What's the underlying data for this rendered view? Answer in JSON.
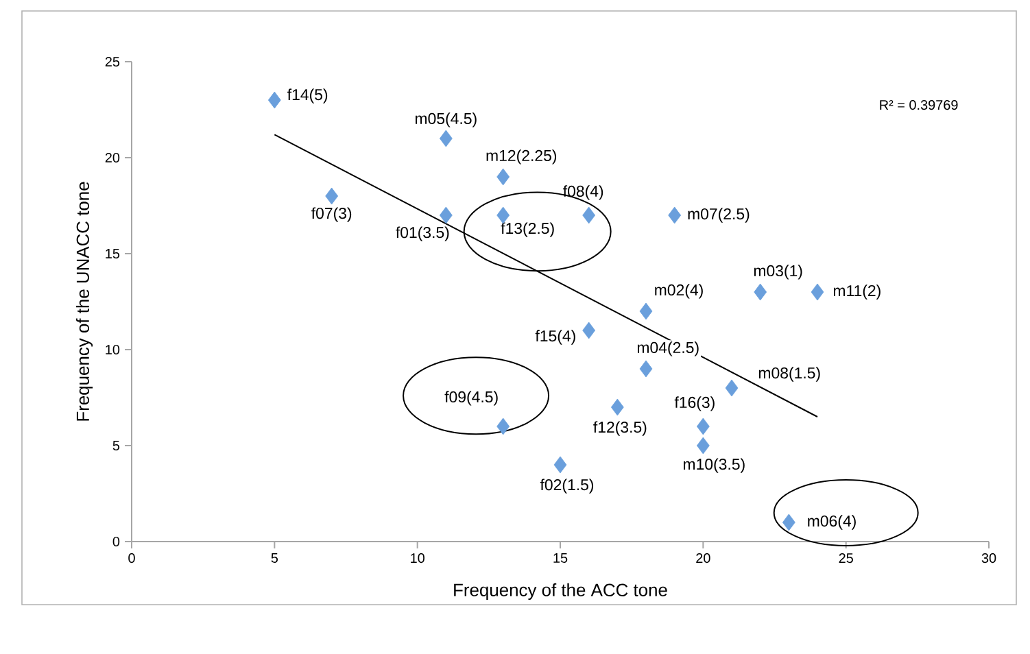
{
  "chart_data": {
    "type": "scatter",
    "xlabel": "Frequency of the ACC tone",
    "ylabel": "Frequency of the UNACC tone",
    "xlim": [
      0,
      30
    ],
    "xticks": [
      0,
      5,
      10,
      15,
      20,
      25,
      30
    ],
    "ylim": [
      0,
      25
    ],
    "yticks": [
      0,
      5,
      10,
      15,
      20,
      25
    ],
    "grid": false,
    "series": [
      {
        "marker": "diamond",
        "color": "#6a9fdc",
        "x": [
          5,
          11,
          7,
          11,
          13,
          13,
          16,
          19,
          18,
          22,
          24,
          16,
          18,
          21,
          20,
          20,
          17,
          13,
          15,
          23
        ],
        "values": [
          23,
          21,
          18,
          17,
          19,
          17,
          17,
          17,
          12,
          13,
          13,
          11,
          9,
          8,
          6,
          5,
          7,
          6,
          4,
          1
        ]
      },
      {
        "type": "line",
        "marker": "none",
        "color": "#000000",
        "x": [
          5,
          24
        ],
        "values": [
          21.2,
          6.5
        ]
      }
    ],
    "annotations": [
      {
        "text": "f14(5)",
        "x": 5,
        "y": 23
      },
      {
        "text": "m05(4.5)",
        "x": 11,
        "y": 21
      },
      {
        "text": "f07(3)",
        "x": 7,
        "y": 18
      },
      {
        "text": "f01(3.5)",
        "x": 11,
        "y": 17
      },
      {
        "text": "m12(2.25)",
        "x": 13,
        "y": 19
      },
      {
        "text": "f13(2.5)",
        "x": 13,
        "y": 17
      },
      {
        "text": "f08(4)",
        "x": 16,
        "y": 17
      },
      {
        "text": "m07(2.5)",
        "x": 19,
        "y": 17
      },
      {
        "text": "m02(4)",
        "x": 18,
        "y": 12
      },
      {
        "text": "m03(1)",
        "x": 22,
        "y": 13
      },
      {
        "text": "m11(2)",
        "x": 24,
        "y": 13
      },
      {
        "text": "f15(4)",
        "x": 16,
        "y": 11
      },
      {
        "text": "m04(2.5)",
        "x": 18,
        "y": 9
      },
      {
        "text": "m08(1.5)",
        "x": 21,
        "y": 8
      },
      {
        "text": "f16(3)",
        "x": 20,
        "y": 6
      },
      {
        "text": "m10(3.5)",
        "x": 20,
        "y": 5
      },
      {
        "text": "f12(3.5)",
        "x": 17,
        "y": 7
      },
      {
        "text": "f09(4.5)",
        "x": 13,
        "y": 6
      },
      {
        "text": "f02(1.5)",
        "x": 15,
        "y": 4
      },
      {
        "text": "m06(4)",
        "x": 23,
        "y": 1
      },
      "R² = 0.39769"
    ]
  }
}
